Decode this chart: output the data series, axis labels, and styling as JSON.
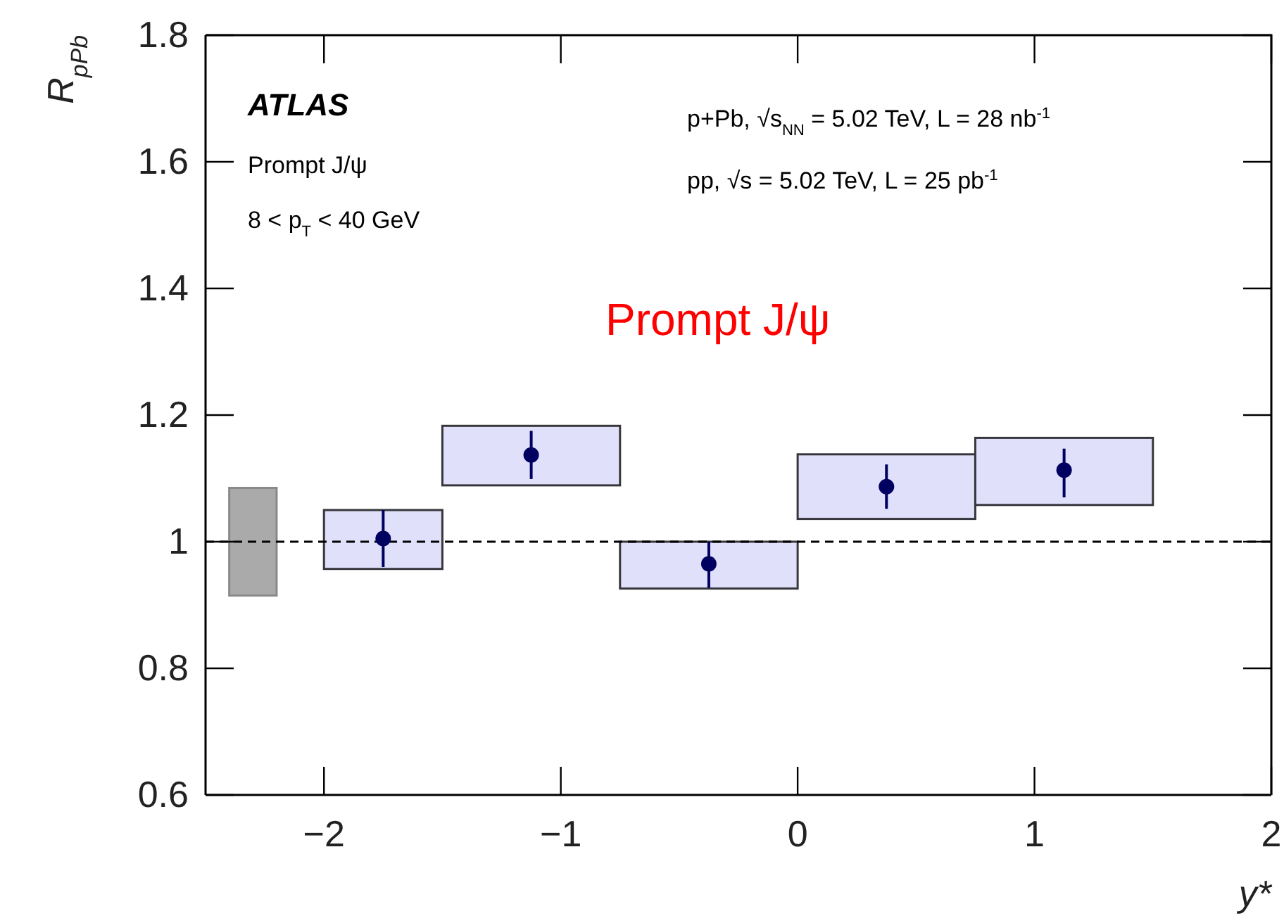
{
  "chart_data": {
    "type": "scatter",
    "xlabel": "y*",
    "ylabel": "R$_{pPb}$",
    "xlim": [
      -2.5,
      2
    ],
    "ylim": [
      0.6,
      1.8
    ],
    "xticks": [
      {
        "value": -2,
        "label": "−2"
      },
      {
        "value": -1,
        "label": "−1"
      },
      0,
      1,
      2
    ],
    "yticks": [
      0.6,
      0.8,
      1,
      1.2,
      1.4,
      1.6,
      1.8
    ],
    "series": [
      {
        "type": "histogram",
        "color": "#aaaaaa",
        "bins": [
          -2.4,
          -2.2
        ],
        "base": [
          0.915
        ],
        "values": [
          0.17
        ]
      },
      {
        "type": "histogram",
        "color": "#e0e0fa",
        "bins": [
          -2,
          -1.5,
          -0.75,
          0,
          0.75,
          1.5
        ],
        "base": [
          0.957,
          1.089,
          0.926,
          1.036,
          1.058
        ],
        "values": [
          0.093,
          0.094,
          0.074,
          0.102,
          0.106
        ]
      },
      {
        "color": "#000060",
        "marker": "circle",
        "x": [
          -1.75,
          -1.125,
          -0.375,
          0.375,
          1.125
        ],
        "values": [
          1.005,
          1.137,
          0.965,
          1.087,
          1.113
        ],
        "errors": [
          0.045,
          0.038,
          [
            0.927,
            1.0
          ],
          0.035,
          [
            1.07,
            1.147
          ]
        ]
      }
    ],
    "ref_lines": [
      {
        "axis": "y",
        "value": 1,
        "line_style": "dashed",
        "color": "#000000"
      }
    ],
    "annotations": [
      "ATLAS",
      "Prompt J/ψ",
      "8 < p$_{T}$ < 40 GeV",
      "p+Pb, √s$_{NN}$ = 5.02 TeV, L = 28 nb$^{-1}$",
      "pp, √s = 5.02 TeV, L = 25 pb$^{-1}$",
      "Prompt J/ψ"
    ]
  }
}
